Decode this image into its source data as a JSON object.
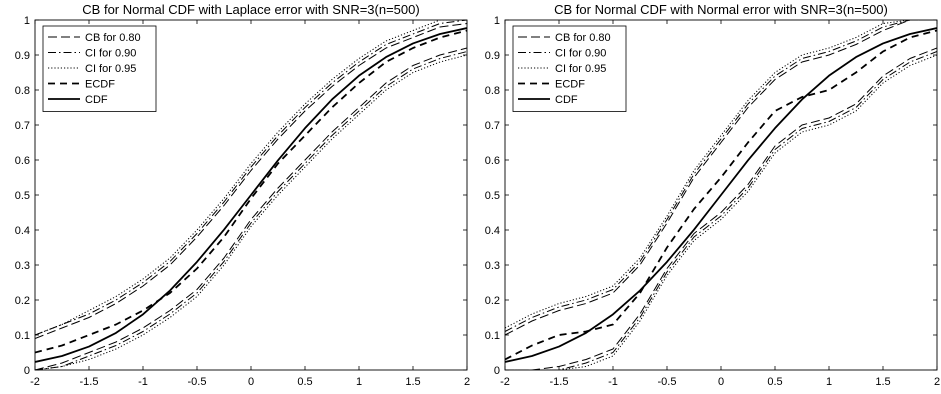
{
  "chart_data": [
    {
      "type": "line",
      "title": "CB for Normal CDF with Laplace error with SNR=3(n=500)",
      "xlabel": "",
      "ylabel": "",
      "xlim": [
        -2,
        2
      ],
      "ylim": [
        0,
        1
      ],
      "xticks": [
        "-2",
        "-1.5",
        "-1",
        "-0.5",
        "0",
        "0.5",
        "1",
        "1.5",
        "2"
      ],
      "yticks": [
        "0",
        "0.1",
        "0.2",
        "0.3",
        "0.4",
        "0.5",
        "0.6",
        "0.7",
        "0.8",
        "0.9",
        "1"
      ],
      "grid": false,
      "legend_position": "top-left",
      "x": [
        -2,
        -1.75,
        -1.5,
        -1.25,
        -1,
        -0.75,
        -0.5,
        -0.25,
        0,
        0.25,
        0.5,
        0.75,
        1,
        1.25,
        1.5,
        1.75,
        2
      ],
      "series": [
        {
          "name": "CB for 0.80",
          "style": "dashed",
          "values": [
            0.09,
            0.12,
            0.15,
            0.19,
            0.24,
            0.3,
            0.38,
            0.47,
            0.57,
            0.66,
            0.74,
            0.81,
            0.87,
            0.92,
            0.95,
            0.98,
            0.99
          ]
        },
        {
          "name": "CB for 0.80",
          "style": "dashed",
          "values": [
            0.0,
            0.02,
            0.05,
            0.08,
            0.12,
            0.17,
            0.23,
            0.32,
            0.43,
            0.52,
            0.6,
            0.68,
            0.75,
            0.82,
            0.87,
            0.9,
            0.92
          ]
        },
        {
          "name": "CI for 0.90",
          "style": "dashdot",
          "values": [
            0.1,
            0.13,
            0.16,
            0.2,
            0.25,
            0.31,
            0.39,
            0.48,
            0.58,
            0.67,
            0.75,
            0.82,
            0.88,
            0.93,
            0.96,
            0.99,
            1.0
          ]
        },
        {
          "name": "CI for 0.90",
          "style": "dashdot",
          "values": [
            0.0,
            0.01,
            0.04,
            0.07,
            0.11,
            0.16,
            0.22,
            0.31,
            0.42,
            0.51,
            0.59,
            0.67,
            0.74,
            0.81,
            0.86,
            0.89,
            0.91
          ]
        },
        {
          "name": "CI for 0.95",
          "style": "dotted",
          "values": [
            0.1,
            0.13,
            0.17,
            0.21,
            0.26,
            0.32,
            0.4,
            0.49,
            0.59,
            0.68,
            0.76,
            0.83,
            0.89,
            0.94,
            0.97,
            1.0,
            1.0
          ]
        },
        {
          "name": "CI for 0.95",
          "style": "dotted",
          "values": [
            0.0,
            0.01,
            0.03,
            0.06,
            0.1,
            0.15,
            0.21,
            0.3,
            0.41,
            0.5,
            0.58,
            0.66,
            0.73,
            0.8,
            0.85,
            0.88,
            0.9
          ]
        },
        {
          "name": "ECDF",
          "style": "bold-dashed",
          "values": [
            0.05,
            0.07,
            0.1,
            0.13,
            0.17,
            0.22,
            0.29,
            0.38,
            0.49,
            0.59,
            0.67,
            0.75,
            0.82,
            0.88,
            0.92,
            0.95,
            0.97
          ]
        },
        {
          "name": "CDF",
          "style": "solid",
          "values": [
            0.023,
            0.04,
            0.067,
            0.106,
            0.159,
            0.227,
            0.309,
            0.401,
            0.5,
            0.599,
            0.691,
            0.773,
            0.841,
            0.894,
            0.933,
            0.96,
            0.977
          ]
        }
      ]
    },
    {
      "type": "line",
      "title": "CB for Normal CDF with Normal error with SNR=3(n=500)",
      "xlabel": "",
      "ylabel": "",
      "xlim": [
        -2,
        2
      ],
      "ylim": [
        0,
        1
      ],
      "xticks": [
        "-2",
        "-1.5",
        "-1",
        "-0.5",
        "0",
        "0.5",
        "1",
        "1.5",
        "2"
      ],
      "yticks": [
        "0",
        "0.1",
        "0.2",
        "0.3",
        "0.4",
        "0.5",
        "0.6",
        "0.7",
        "0.8",
        "0.9",
        "1"
      ],
      "grid": false,
      "legend_position": "top-left",
      "x": [
        -2,
        -1.75,
        -1.5,
        -1.25,
        -1,
        -0.75,
        -0.5,
        -0.25,
        0,
        0.25,
        0.5,
        0.75,
        1,
        1.25,
        1.5,
        1.75,
        2
      ],
      "series": [
        {
          "name": "CB for 0.80",
          "style": "dashed",
          "values": [
            0.1,
            0.14,
            0.17,
            0.19,
            0.22,
            0.3,
            0.42,
            0.55,
            0.65,
            0.75,
            0.83,
            0.88,
            0.9,
            0.93,
            0.97,
            1.0,
            1.0
          ]
        },
        {
          "name": "CB for 0.80",
          "style": "dashed",
          "values": [
            0.0,
            0.0,
            0.01,
            0.03,
            0.06,
            0.16,
            0.29,
            0.39,
            0.45,
            0.53,
            0.64,
            0.7,
            0.72,
            0.76,
            0.84,
            0.89,
            0.92
          ]
        },
        {
          "name": "CI for 0.90",
          "style": "dashdot",
          "values": [
            0.11,
            0.15,
            0.18,
            0.2,
            0.23,
            0.31,
            0.43,
            0.56,
            0.66,
            0.76,
            0.84,
            0.89,
            0.91,
            0.94,
            0.98,
            1.0,
            1.0
          ]
        },
        {
          "name": "CI for 0.90",
          "style": "dashdot",
          "values": [
            0.0,
            0.0,
            0.0,
            0.02,
            0.05,
            0.15,
            0.28,
            0.38,
            0.44,
            0.52,
            0.63,
            0.69,
            0.71,
            0.75,
            0.83,
            0.88,
            0.91
          ]
        },
        {
          "name": "CI for 0.95",
          "style": "dotted",
          "values": [
            0.12,
            0.16,
            0.19,
            0.21,
            0.24,
            0.32,
            0.44,
            0.57,
            0.67,
            0.77,
            0.85,
            0.9,
            0.92,
            0.95,
            0.99,
            1.0,
            1.0
          ]
        },
        {
          "name": "CI for 0.95",
          "style": "dotted",
          "values": [
            0.0,
            0.0,
            0.0,
            0.01,
            0.04,
            0.14,
            0.27,
            0.37,
            0.43,
            0.51,
            0.62,
            0.68,
            0.7,
            0.74,
            0.82,
            0.87,
            0.9
          ]
        },
        {
          "name": "ECDF",
          "style": "bold-dashed",
          "values": [
            0.03,
            0.07,
            0.1,
            0.11,
            0.13,
            0.22,
            0.35,
            0.46,
            0.55,
            0.65,
            0.74,
            0.78,
            0.8,
            0.85,
            0.91,
            0.95,
            0.97
          ]
        },
        {
          "name": "CDF",
          "style": "solid",
          "values": [
            0.023,
            0.04,
            0.067,
            0.106,
            0.159,
            0.227,
            0.309,
            0.401,
            0.5,
            0.599,
            0.691,
            0.773,
            0.841,
            0.894,
            0.933,
            0.96,
            0.977
          ]
        }
      ]
    }
  ]
}
